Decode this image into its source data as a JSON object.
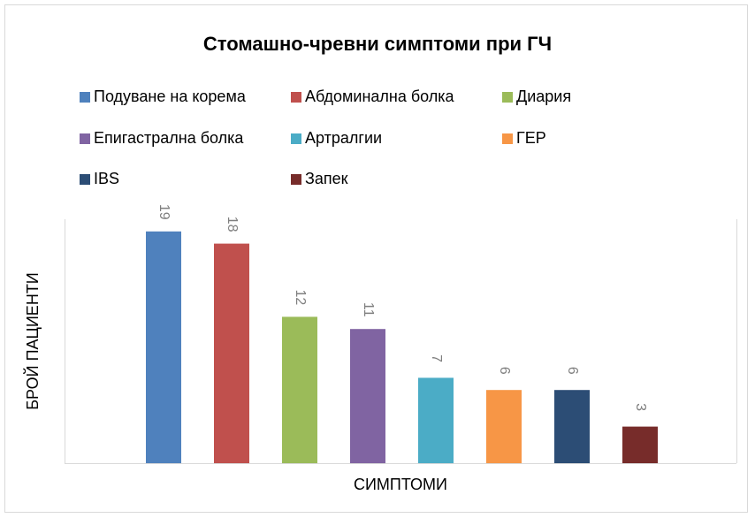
{
  "chart_data": {
    "type": "bar",
    "title": "Стомашно-чревни симптоми при ГЧ",
    "x_label": "СИМПТОМИ",
    "y_label": "БРОЙ ПАЦИЕНТИ",
    "ylim": [
      0,
      20
    ],
    "series": [
      {
        "name": "Подуване на корема",
        "color": "#4f81bd",
        "values": [
          19
        ]
      },
      {
        "name": "Абдоминална болка",
        "color": "#c0504d",
        "values": [
          18
        ]
      },
      {
        "name": "Диария",
        "color": "#9bbb59",
        "values": [
          12
        ]
      },
      {
        "name": "Епигастрална болка",
        "color": "#8064a2",
        "values": [
          11
        ]
      },
      {
        "name": "Артралгии",
        "color": "#4bacc6",
        "values": [
          7
        ]
      },
      {
        "name": "ГЕР",
        "color": "#f79646",
        "values": [
          6
        ]
      },
      {
        "name": "IBS",
        "color": "#2c4d75",
        "values": [
          6
        ]
      },
      {
        "name": "Запек",
        "color": "#772c2a",
        "values": [
          3
        ]
      }
    ]
  }
}
